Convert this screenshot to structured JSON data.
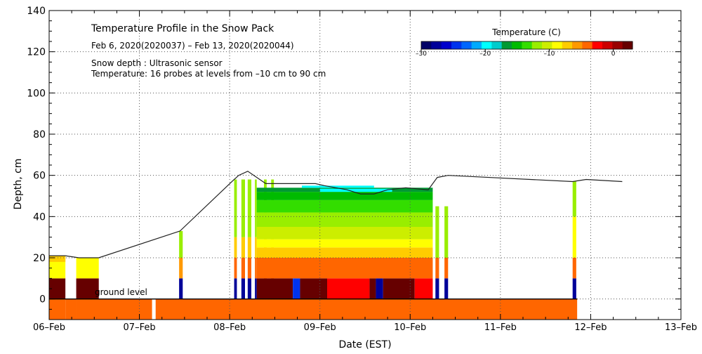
{
  "chart_data": {
    "type": "heatmap",
    "title": "Temperature Profile in the Snow Pack",
    "date_range": "Feb  6, 2020(2020037) – Feb 13, 2020(2020044)",
    "notes": [
      "Snow depth : Ultrasonic sensor",
      "Temperature: 16 probes at levels from –10 cm to 90 cm"
    ],
    "xlabel": "Date (EST)",
    "ylabel": "Depth, cm",
    "x_ticks": [
      "06–Feb",
      "07–Feb",
      "08–Feb",
      "09–Feb",
      "10–Feb",
      "11–Feb",
      "12–Feb",
      "13–Feb"
    ],
    "xlim": [
      0,
      7
    ],
    "ylim": [
      -10,
      140
    ],
    "y_ticks": [
      0,
      20,
      40,
      60,
      80,
      100,
      120,
      140
    ],
    "grid": true,
    "annotation": "ground level",
    "colorbar": {
      "title": "Temperature (C)",
      "range": [
        -30,
        3
      ],
      "tick_labels": [
        "–30",
        "–20",
        "–10",
        "0"
      ],
      "tick_values": [
        -30,
        -20,
        -10,
        0
      ],
      "colors": [
        "#000066",
        "#000099",
        "#0000cc",
        "#0033ee",
        "#0066ff",
        "#00aaff",
        "#00ffff",
        "#00cccc",
        "#009933",
        "#00bb00",
        "#33dd00",
        "#99ee00",
        "#ccee00",
        "#ffff00",
        "#ffcc00",
        "#ff9900",
        "#ff6600",
        "#ff0000",
        "#cc0000",
        "#990000",
        "#660000"
      ]
    },
    "snow_depth": [
      [
        0.0,
        21
      ],
      [
        0.18,
        21
      ],
      [
        0.33,
        20
      ],
      [
        0.55,
        20
      ],
      [
        1.45,
        33
      ],
      [
        2.05,
        58
      ],
      [
        2.1,
        60
      ],
      [
        2.2,
        62
      ],
      [
        2.4,
        56
      ],
      [
        2.55,
        56
      ],
      [
        2.7,
        56
      ],
      [
        2.95,
        56
      ],
      [
        3.05,
        55
      ],
      [
        3.3,
        53
      ],
      [
        3.45,
        51
      ],
      [
        3.6,
        51
      ],
      [
        3.75,
        53
      ],
      [
        3.95,
        54
      ],
      [
        4.2,
        53
      ],
      [
        4.3,
        59
      ],
      [
        4.42,
        60
      ],
      [
        5.8,
        57
      ],
      [
        5.95,
        58
      ],
      [
        6.15,
        57.5
      ],
      [
        6.35,
        57
      ]
    ]
  }
}
